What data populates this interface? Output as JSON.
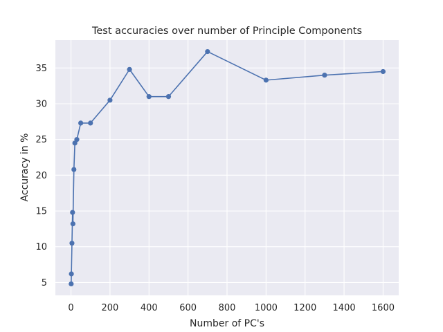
{
  "chart_data": {
    "type": "line",
    "title": "Test accuracies over number of Principle Components",
    "xlabel": "Number of PC's",
    "ylabel": "Accuracy in %",
    "xlim": [
      -80,
      1680
    ],
    "ylim": [
      3.2,
      38.9
    ],
    "xticks": [
      0,
      200,
      400,
      600,
      800,
      1000,
      1200,
      1400,
      1600
    ],
    "yticks": [
      5,
      10,
      15,
      20,
      25,
      30,
      35
    ],
    "grid": true,
    "legend": "none",
    "colors": {
      "background": "#eaeaf2",
      "grid": "#ffffff",
      "line": "#4c72b0"
    },
    "series": [
      {
        "x": [
          1,
          2,
          5,
          8,
          10,
          15,
          20,
          30,
          50,
          100,
          200,
          300,
          400,
          500,
          700,
          1000,
          1300,
          1600
        ],
        "values": [
          4.8,
          6.2,
          10.5,
          14.8,
          13.2,
          20.8,
          24.5,
          25.0,
          27.3,
          27.3,
          30.5,
          34.8,
          31.0,
          31.0,
          37.3,
          33.3,
          34.0,
          34.5
        ]
      }
    ]
  }
}
